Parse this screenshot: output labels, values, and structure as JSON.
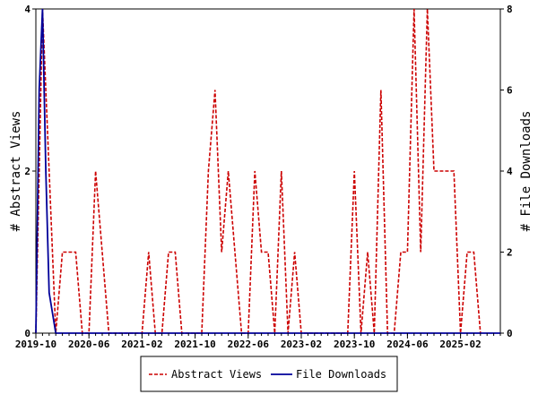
{
  "chart_data": {
    "type": "line",
    "x_tick_labels": [
      "2019-10",
      "2020-06",
      "2021-02",
      "2021-10",
      "2022-06",
      "2023-02",
      "2023-10",
      "2024-06",
      "2025-02"
    ],
    "ylabel_left": "# Abstract Views",
    "ylabel_right": "# File Downloads",
    "ylim_left": [
      0,
      4
    ],
    "ylim_right": [
      0,
      8
    ],
    "y_ticks_left": [
      "0",
      "2",
      "4"
    ],
    "y_ticks_right": [
      "0",
      "2",
      "4",
      "6",
      "8"
    ],
    "grid": false,
    "legend_position": "bottom",
    "x_range": [
      0,
      70
    ],
    "series": [
      {
        "name": "Abstract Views",
        "axis": "left",
        "color": "#cc0000",
        "style": "dashed",
        "x": [
          0,
          1,
          2,
          3,
          4,
          5,
          6,
          7,
          8,
          9,
          10,
          11,
          12,
          13,
          14,
          15,
          16,
          17,
          18,
          19,
          20,
          21,
          22,
          23,
          24,
          25,
          26,
          27,
          28,
          29,
          30,
          31,
          32,
          33,
          34,
          35,
          36,
          37,
          38,
          39,
          40,
          41,
          42,
          43,
          44,
          45,
          46,
          47,
          48,
          49,
          50,
          51,
          52,
          53,
          54,
          55,
          56,
          57,
          58,
          59,
          60,
          61,
          62,
          63,
          64,
          65,
          66,
          67
        ],
        "y": [
          0,
          4,
          2,
          0,
          1,
          1,
          1,
          0,
          0,
          2,
          1,
          0,
          0,
          0,
          0,
          0,
          0,
          1,
          0,
          0,
          1,
          1,
          0,
          0,
          0,
          0,
          2,
          3,
          1,
          2,
          1,
          0,
          0,
          2,
          1,
          1,
          0,
          2,
          0,
          1,
          0,
          0,
          0,
          0,
          0,
          0,
          0,
          0,
          2,
          0,
          1,
          0,
          3,
          0,
          0,
          1,
          1,
          4,
          1,
          4,
          2,
          2,
          2,
          2,
          0,
          1,
          1,
          0
        ]
      },
      {
        "name": "File Downloads",
        "axis": "right",
        "color": "#000099",
        "style": "solid",
        "x": [
          0,
          0.5,
          1,
          1.5,
          2,
          2.5,
          3,
          4,
          5,
          10,
          20,
          30,
          40,
          50,
          60,
          70
        ],
        "y": [
          0,
          6,
          8,
          4,
          1,
          0.5,
          0,
          0,
          0,
          0,
          0,
          0,
          0,
          0,
          0,
          0
        ]
      }
    ]
  }
}
